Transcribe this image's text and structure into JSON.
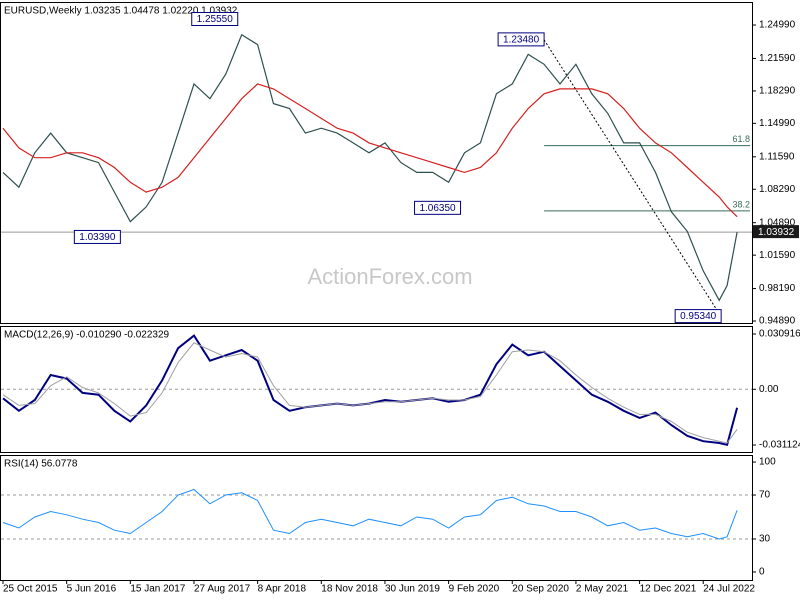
{
  "chart_data": [
    {
      "type": "line",
      "title": "EURUSD,Weekly  1.03235 1.04478 1.02220 1.03932",
      "watermark": "ActionForex.com",
      "x": [
        0,
        8,
        16,
        24,
        32,
        40,
        48,
        56,
        64,
        72,
        80,
        88,
        96,
        104,
        112,
        120,
        128,
        136,
        144,
        152,
        160,
        168,
        176,
        184,
        192,
        200,
        208,
        216,
        224,
        232,
        240,
        248,
        256,
        264,
        272,
        280,
        288,
        296,
        304,
        312,
        320,
        328,
        336,
        344,
        352,
        360,
        364,
        369
      ],
      "xlim": [
        0,
        375
      ],
      "ylim": [
        0.9469,
        1.2723
      ],
      "yticks": [
        {
          "value": 1.2499,
          "label": "1.24990"
        },
        {
          "value": 1.2159,
          "label": "1.21590"
        },
        {
          "value": 1.1829,
          "label": "1.18290"
        },
        {
          "value": 1.1499,
          "label": "1.14990"
        },
        {
          "value": 1.1159,
          "label": "1.11590"
        },
        {
          "value": 1.0829,
          "label": "1.08290"
        },
        {
          "value": 1.0489,
          "label": "1.04890"
        },
        {
          "value": 1.0159,
          "label": "1.01590"
        },
        {
          "value": 0.9819,
          "label": "0.98190"
        },
        {
          "value": 0.9489,
          "label": "0.94890"
        }
      ],
      "series": [
        {
          "color": "#2f4f4f",
          "values": [
            1.1,
            1.085,
            1.12,
            1.14,
            1.12,
            1.115,
            1.11,
            1.08,
            1.05,
            1.065,
            1.09,
            1.14,
            1.19,
            1.175,
            1.2,
            1.24,
            1.23,
            1.17,
            1.165,
            1.14,
            1.145,
            1.14,
            1.13,
            1.12,
            1.13,
            1.11,
            1.1,
            1.1,
            1.09,
            1.12,
            1.13,
            1.18,
            1.19,
            1.22,
            1.21,
            1.19,
            1.21,
            1.18,
            1.16,
            1.13,
            1.13,
            1.1,
            1.06,
            1.04,
            1.0,
            0.97,
            0.985,
            1.03932
          ]
        },
        {
          "color": "#d62020",
          "values": [
            1.145,
            1.125,
            1.115,
            1.115,
            1.12,
            1.12,
            1.115,
            1.105,
            1.09,
            1.08,
            1.085,
            1.095,
            1.115,
            1.135,
            1.155,
            1.175,
            1.19,
            1.185,
            1.175,
            1.165,
            1.155,
            1.145,
            1.14,
            1.13,
            1.125,
            1.12,
            1.115,
            1.11,
            1.105,
            1.1,
            1.105,
            1.12,
            1.145,
            1.165,
            1.18,
            1.185,
            1.185,
            1.185,
            1.18,
            1.165,
            1.145,
            1.13,
            1.12,
            1.105,
            1.09,
            1.075,
            1.065,
            1.055
          ]
        }
      ],
      "last_price": 1.03932,
      "annotations": [
        {
          "label": "1.25550",
          "value": 1.2555,
          "x": 118
        },
        {
          "label": "1.23480",
          "value": 1.2348,
          "x": 272
        },
        {
          "label": "1.06350",
          "value": 1.0635,
          "x": 230
        },
        {
          "label": "1.03390",
          "value": 1.0339,
          "x": 59
        },
        {
          "label": "0.95340",
          "value": 0.9534,
          "x": 361
        }
      ],
      "fib_levels": [
        {
          "label": "61.8",
          "value": 1.1273
        },
        {
          "label": "38.2",
          "value": 1.0609
        }
      ]
    },
    {
      "type": "line",
      "title": "MACD(12,26,9) -0.010290 -0.022329",
      "x": [
        0,
        8,
        16,
        24,
        32,
        40,
        48,
        56,
        64,
        72,
        80,
        88,
        96,
        104,
        112,
        120,
        128,
        136,
        144,
        152,
        160,
        168,
        176,
        184,
        192,
        200,
        208,
        216,
        224,
        232,
        240,
        248,
        256,
        264,
        272,
        280,
        288,
        296,
        304,
        312,
        320,
        328,
        336,
        344,
        352,
        360,
        364,
        369
      ],
      "xlim": [
        0,
        375
      ],
      "ylim": [
        -0.03504,
        0.03483
      ],
      "yticks": [
        0.030916,
        {
          "value": 0,
          "label": "0.00"
        },
        -0.031124
      ],
      "hlines": [
        0
      ],
      "series": [
        {
          "color": "#000080",
          "values": [
            -0.005,
            -0.012,
            -0.006,
            0.008,
            0.006,
            -0.002,
            -0.003,
            -0.012,
            -0.018,
            -0.009,
            0.005,
            0.023,
            0.03,
            0.016,
            0.019,
            0.022,
            0.016,
            -0.006,
            -0.012,
            -0.01,
            -0.009,
            -0.008,
            -0.009,
            -0.008,
            -0.006,
            -0.007,
            -0.006,
            -0.005,
            -0.007,
            -0.006,
            -0.003,
            0.014,
            0.025,
            0.019,
            0.021,
            0.013,
            0.005,
            -0.003,
            -0.007,
            -0.012,
            -0.016,
            -0.013,
            -0.02,
            -0.026,
            -0.029,
            -0.03,
            -0.031,
            -0.01029
          ]
        },
        {
          "color": "#a0a0a0",
          "values": [
            -0.003,
            -0.009,
            -0.008,
            0.002,
            0.007,
            0.001,
            -0.002,
            -0.008,
            -0.015,
            -0.013,
            -0.002,
            0.015,
            0.026,
            0.022,
            0.018,
            0.02,
            0.018,
            0.002,
            -0.009,
            -0.01,
            -0.009,
            -0.008,
            -0.009,
            -0.008,
            -0.007,
            -0.007,
            -0.006,
            -0.005,
            -0.006,
            -0.006,
            -0.004,
            0.008,
            0.021,
            0.022,
            0.021,
            0.016,
            0.008,
            0.001,
            -0.005,
            -0.01,
            -0.014,
            -0.014,
            -0.018,
            -0.024,
            -0.027,
            -0.029,
            -0.03,
            -0.022329
          ]
        }
      ]
    },
    {
      "type": "line",
      "title": "RSI(14) 56.0778",
      "x": [
        0,
        8,
        16,
        24,
        32,
        40,
        48,
        56,
        64,
        72,
        80,
        88,
        96,
        104,
        112,
        120,
        128,
        136,
        144,
        152,
        160,
        168,
        176,
        184,
        192,
        200,
        208,
        216,
        224,
        232,
        240,
        248,
        256,
        264,
        272,
        280,
        288,
        296,
        304,
        312,
        320,
        328,
        336,
        344,
        352,
        360,
        364,
        369
      ],
      "xlim": [
        0,
        375
      ],
      "ylim": [
        -7.3,
        105.5
      ],
      "yticks": [
        100,
        70,
        30,
        0
      ],
      "hlines": [
        70,
        30
      ],
      "xticks": [
        {
          "value": 0,
          "label": "25 Oct 2015"
        },
        {
          "value": 32,
          "label": "5 Jun 2016"
        },
        {
          "value": 64,
          "label": "15 Jan 2017"
        },
        {
          "value": 96,
          "label": "27 Aug 2017"
        },
        {
          "value": 128,
          "label": "8 Apr 2018"
        },
        {
          "value": 160,
          "label": "18 Nov 2018"
        },
        {
          "value": 192,
          "label": "30 Jun 2019"
        },
        {
          "value": 224,
          "label": "9 Feb 2020"
        },
        {
          "value": 256,
          "label": "20 Sep 2020"
        },
        {
          "value": 288,
          "label": "2 May 2021"
        },
        {
          "value": 320,
          "label": "12 Dec 2021"
        },
        {
          "value": 352,
          "label": "24 Jul 2022"
        }
      ],
      "series": [
        {
          "color": "#1e90ff",
          "values": [
            45,
            40,
            50,
            55,
            52,
            48,
            45,
            38,
            35,
            45,
            55,
            70,
            75,
            62,
            70,
            72,
            65,
            38,
            35,
            45,
            48,
            45,
            42,
            48,
            45,
            42,
            50,
            48,
            40,
            50,
            52,
            65,
            68,
            62,
            60,
            55,
            55,
            50,
            42,
            45,
            38,
            40,
            35,
            32,
            35,
            30,
            32,
            56.0778
          ]
        }
      ]
    }
  ]
}
